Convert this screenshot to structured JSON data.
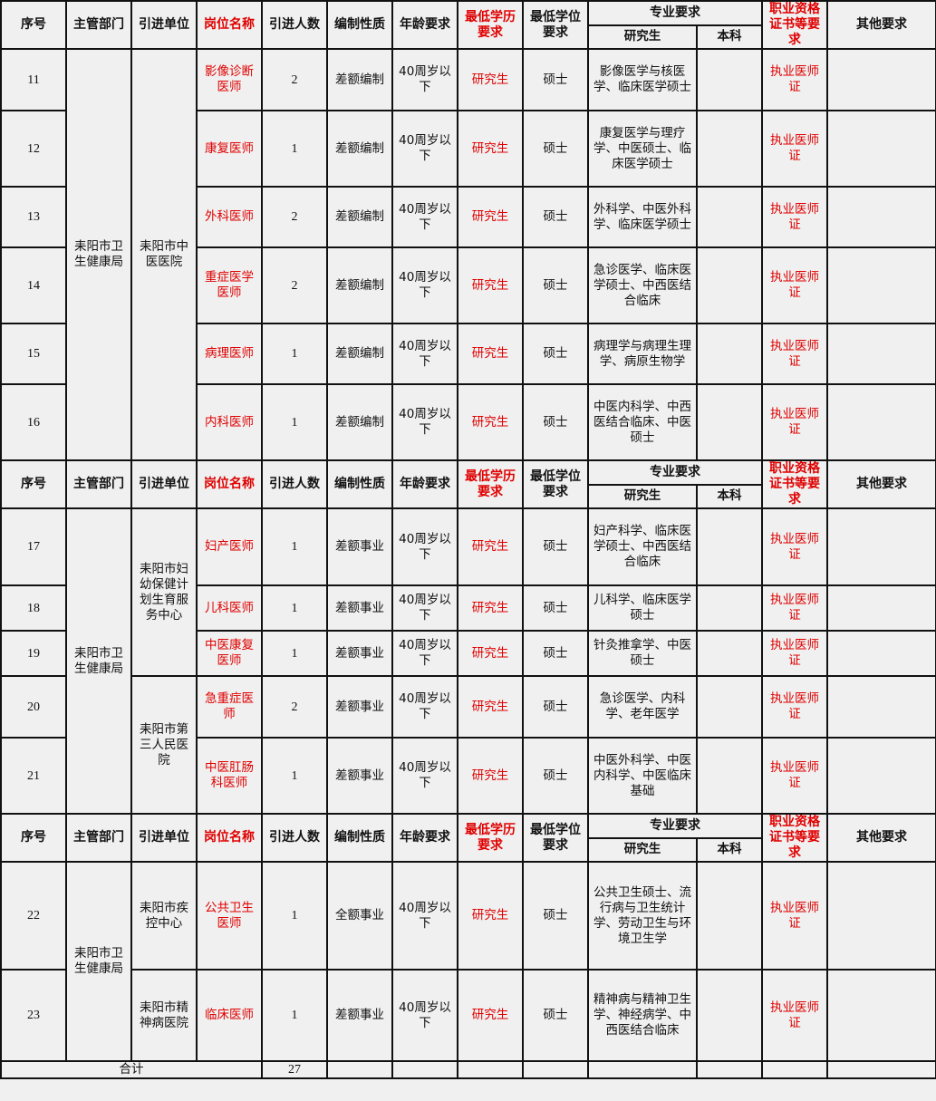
{
  "header": {
    "seq": "序号",
    "dept": "主管部门",
    "unit": "引进单位",
    "position": "岗位名称",
    "count": "引进人数",
    "staffing": "编制性质",
    "age": "年龄要求",
    "education": "最低学历要求",
    "degree": "最低学位要求",
    "major": "专业要求",
    "major_grad": "研究生",
    "major_undergrad": "本科",
    "cert": "职业资格证书等要求",
    "other": "其他要求"
  },
  "colors": {
    "highlight": "#e00000",
    "background": "#f0f0f0"
  },
  "sections": [
    {
      "dept": "耒阳市卫生健康局",
      "units": [
        {
          "name": "耒阳市中医医院",
          "rows": [
            {
              "seq": "11",
              "position": "影像诊断医师",
              "count": "2",
              "staffing": "差额编制",
              "age": "40周岁以下",
              "education": "研究生",
              "degree": "硕士",
              "major_grad": "影像医学与核医学、临床医学硕士",
              "major_undergrad": "",
              "cert": "执业医师证",
              "other": ""
            },
            {
              "seq": "12",
              "position": "康复医师",
              "count": "1",
              "staffing": "差额编制",
              "age": "40周岁以下",
              "education": "研究生",
              "degree": "硕士",
              "major_grad": "康复医学与理疗学、中医硕士、临床医学硕士",
              "major_undergrad": "",
              "cert": "执业医师证",
              "other": ""
            },
            {
              "seq": "13",
              "position": "外科医师",
              "count": "2",
              "staffing": "差额编制",
              "age": "40周岁以下",
              "education": "研究生",
              "degree": "硕士",
              "major_grad": "外科学、中医外科学、临床医学硕士",
              "major_undergrad": "",
              "cert": "执业医师证",
              "other": ""
            },
            {
              "seq": "14",
              "position": "重症医学医师",
              "count": "2",
              "staffing": "差额编制",
              "age": "40周岁以下",
              "education": "研究生",
              "degree": "硕士",
              "major_grad": "急诊医学、临床医学硕士、中西医结合临床",
              "major_undergrad": "",
              "cert": "执业医师证",
              "other": ""
            },
            {
              "seq": "15",
              "position": "病理医师",
              "count": "1",
              "staffing": "差额编制",
              "age": "40周岁以下",
              "education": "研究生",
              "degree": "硕士",
              "major_grad": "病理学与病理生理学、病原生物学",
              "major_undergrad": "",
              "cert": "执业医师证",
              "other": ""
            },
            {
              "seq": "16",
              "position": "内科医师",
              "count": "1",
              "staffing": "差额编制",
              "age": "40周岁以下",
              "education": "研究生",
              "degree": "硕士",
              "major_grad": "中医内科学、中西医结合临床、中医硕士",
              "major_undergrad": "",
              "cert": "执业医师证",
              "other": ""
            }
          ]
        }
      ]
    },
    {
      "dept": "耒阳市卫生健康局",
      "units": [
        {
          "name": "耒阳市妇幼保健计划生育服务中心",
          "rows": [
            {
              "seq": "17",
              "position": "妇产医师",
              "count": "1",
              "staffing": "差额事业",
              "age": "40周岁以下",
              "education": "研究生",
              "degree": "硕士",
              "major_grad": "妇产科学、临床医学硕士、中西医结合临床",
              "major_undergrad": "",
              "cert": "执业医师证",
              "other": ""
            },
            {
              "seq": "18",
              "position": "儿科医师",
              "count": "1",
              "staffing": "差额事业",
              "age": "40周岁以下",
              "education": "研究生",
              "degree": "硕士",
              "major_grad": "儿科学、临床医学硕士",
              "major_undergrad": "",
              "cert": "执业医师证",
              "other": ""
            },
            {
              "seq": "19",
              "position": "中医康复医师",
              "count": "1",
              "staffing": "差额事业",
              "age": "40周岁以下",
              "education": "研究生",
              "degree": "硕士",
              "major_grad": "针灸推拿学、中医硕士",
              "major_undergrad": "",
              "cert": "执业医师证",
              "other": ""
            }
          ]
        },
        {
          "name": "耒阳市第三人民医院",
          "rows": [
            {
              "seq": "20",
              "position": "急重症医师",
              "count": "2",
              "staffing": "差额事业",
              "age": "40周岁以下",
              "education": "研究生",
              "degree": "硕士",
              "major_grad": "急诊医学、内科学、老年医学",
              "major_undergrad": "",
              "cert": "执业医师证",
              "other": ""
            },
            {
              "seq": "21",
              "position": "中医肛肠科医师",
              "count": "1",
              "staffing": "差额事业",
              "age": "40周岁以下",
              "education": "研究生",
              "degree": "硕士",
              "major_grad": "中医外科学、中医内科学、中医临床基础",
              "major_undergrad": "",
              "cert": "执业医师证",
              "other": ""
            }
          ]
        }
      ]
    },
    {
      "dept": "耒阳市卫生健康局",
      "units": [
        {
          "name": "耒阳市疾控中心",
          "rows": [
            {
              "seq": "22",
              "position": "公共卫生医师",
              "count": "1",
              "staffing": "全额事业",
              "age": "40周岁以下",
              "education": "研究生",
              "degree": "硕士",
              "major_grad": "公共卫生硕士、流行病与卫生统计学、劳动卫生与环境卫生学",
              "major_undergrad": "",
              "cert": "执业医师证",
              "other": ""
            }
          ]
        },
        {
          "name": "耒阳市精神病医院",
          "rows": [
            {
              "seq": "23",
              "position": "临床医师",
              "count": "1",
              "staffing": "差额事业",
              "age": "40周岁以下",
              "education": "研究生",
              "degree": "硕士",
              "major_grad": "精神病与精神卫生学、神经病学、中西医结合临床",
              "major_undergrad": "",
              "cert": "执业医师证",
              "other": ""
            }
          ]
        }
      ]
    }
  ],
  "total": {
    "label": "合计",
    "count": "27"
  }
}
